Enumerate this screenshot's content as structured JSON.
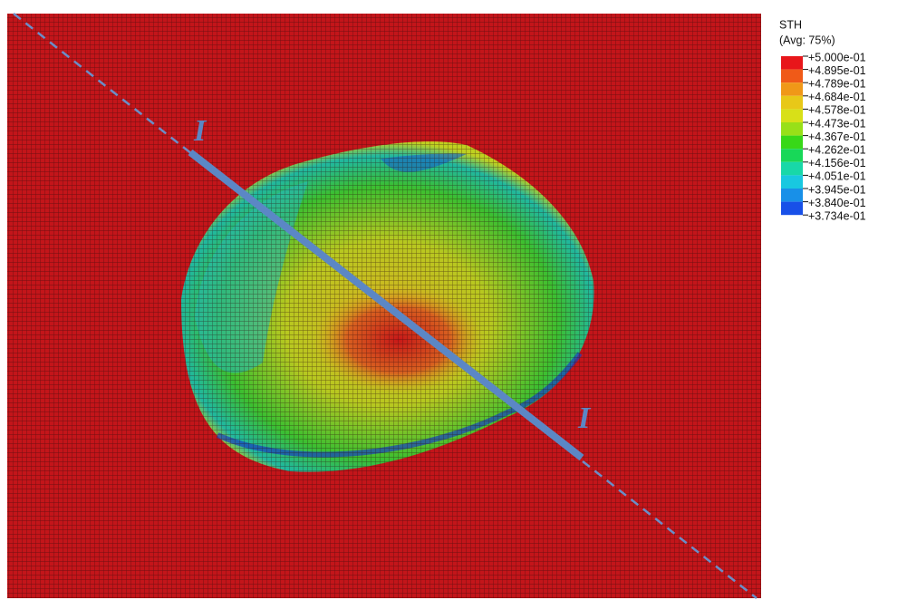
{
  "legend": {
    "title": "STH",
    "subtitle": "(Avg: 75%)",
    "labels": [
      "+5.000e-01",
      "+4.895e-01",
      "+4.789e-01",
      "+4.684e-01",
      "+4.578e-01",
      "+4.473e-01",
      "+4.367e-01",
      "+4.262e-01",
      "+4.156e-01",
      "+4.051e-01",
      "+3.945e-01",
      "+3.840e-01",
      "+3.734e-01"
    ]
  },
  "section": {
    "start_label": "I",
    "end_label": "I"
  }
}
